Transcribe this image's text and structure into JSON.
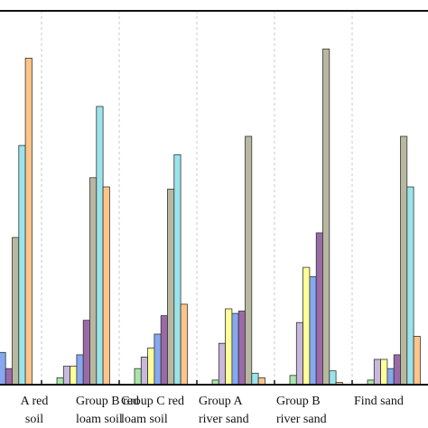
{
  "chart_data": {
    "type": "bar",
    "categories": [
      "Group A red loam soil",
      "Group B red loam soil",
      "Group C red loam soil",
      "Group A river sand",
      "Group B river sand",
      "Find sand"
    ],
    "category_label_lines": [
      [
        "A red",
        "soil"
      ],
      [
        "Group B red",
        "loam soil"
      ],
      [
        "Group C red",
        "loam soil"
      ],
      [
        "Group A",
        "river sand"
      ],
      [
        "Group B",
        "river sand"
      ],
      [
        "Find sand",
        ""
      ]
    ],
    "series_colors": [
      "#a8e6a8",
      "#c8b8dc",
      "#ffff99",
      "#86a8f0",
      "#9a6aa8",
      "#b8b8a0",
      "#9ae4ec",
      "#ffc48a"
    ],
    "series": [
      {
        "values": [
          null,
          3,
          7,
          2,
          4,
          2
        ]
      },
      {
        "values": [
          null,
          8,
          12,
          18,
          27,
          11
        ]
      },
      {
        "values": [
          null,
          8,
          16,
          33,
          51,
          11
        ]
      },
      {
        "values": [
          14,
          13,
          22,
          31,
          47,
          7
        ]
      },
      {
        "values": [
          7,
          28,
          30,
          32,
          66,
          13
        ]
      },
      {
        "values": [
          64,
          90,
          85,
          108,
          146,
          108
        ]
      },
      {
        "values": [
          104,
          121,
          100,
          5,
          6,
          86
        ]
      },
      {
        "values": [
          142,
          86,
          35,
          3,
          1,
          21
        ]
      }
    ],
    "ylim": [
      0,
      150
    ],
    "grid": "vertical dashed separators between groups"
  }
}
